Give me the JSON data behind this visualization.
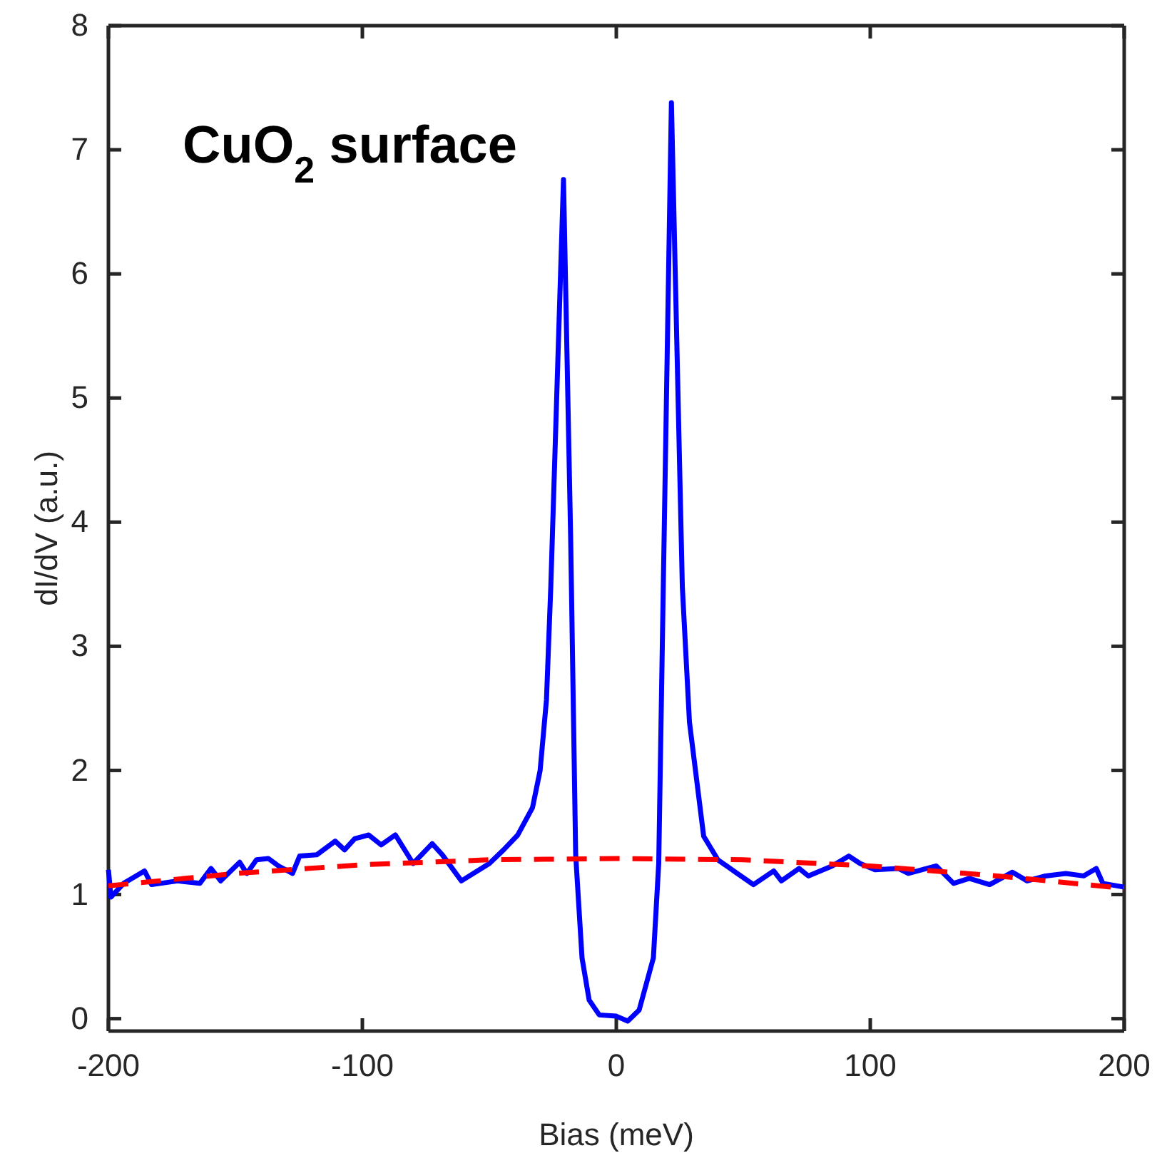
{
  "chart_data": {
    "type": "line",
    "xlabel": "Bias (meV)",
    "ylabel": "dI/dV (a.u.)",
    "annotations": [
      "CuO$_{2}$ surface"
    ],
    "xlim": [
      -200,
      200
    ],
    "xticks": [
      -200,
      -100,
      0,
      100,
      200
    ],
    "ylim": [
      -0.1,
      8
    ],
    "yticks": [
      0,
      1,
      2,
      3,
      4,
      5,
      6,
      7,
      8
    ],
    "marker": "none",
    "series": [
      {
        "color": "#0000ff",
        "line_style": "solid",
        "x": [
          -200,
          -199,
          -194,
          -185.8,
          -183,
          -172.7,
          -164,
          -159.6,
          -155.8,
          -148.3,
          -145.5,
          -141.7,
          -137,
          -133,
          -127.5,
          -124.7,
          -118,
          -110.7,
          -107,
          -103,
          -97.5,
          -92.6,
          -87,
          -80,
          -72.5,
          -68.5,
          -61,
          -50,
          -44.4,
          -38.8,
          -33,
          -30,
          -27.5,
          -25.8,
          -20.8,
          -18,
          -16,
          -13.5,
          -10.7,
          -6.7,
          0,
          4.5,
          9,
          14.6,
          16.7,
          18.5,
          21.7,
          26,
          28.8,
          34.4,
          40,
          47.6,
          54,
          62,
          65,
          72,
          75.6,
          85,
          91.6,
          96,
          101.9,
          111,
          115,
          126,
          132.8,
          139,
          147,
          156,
          161.8,
          169,
          177,
          184,
          189,
          191.6,
          200
        ],
        "values": [
          1.2,
          0.98,
          1.09,
          1.19,
          1.08,
          1.11,
          1.09,
          1.21,
          1.11,
          1.26,
          1.17,
          1.28,
          1.29,
          1.23,
          1.17,
          1.31,
          1.32,
          1.43,
          1.36,
          1.45,
          1.48,
          1.4,
          1.48,
          1.25,
          1.41,
          1.32,
          1.11,
          1.25,
          1.36,
          1.48,
          1.7,
          2.0,
          2.57,
          3.48,
          6.76,
          3.9,
          1.32,
          0.49,
          0.15,
          0.03,
          0.02,
          -0.02,
          0.07,
          0.49,
          1.25,
          3.48,
          7.38,
          3.48,
          2.39,
          1.47,
          1.28,
          1.17,
          1.08,
          1.19,
          1.11,
          1.21,
          1.15,
          1.23,
          1.31,
          1.25,
          1.2,
          1.21,
          1.17,
          1.23,
          1.09,
          1.13,
          1.08,
          1.18,
          1.11,
          1.15,
          1.17,
          1.15,
          1.21,
          1.09,
          1.06
        ]
      },
      {
        "color": "#ff0000",
        "line_style": "dashed",
        "x": [
          -200,
          -150,
          -100,
          -50,
          0,
          50,
          100,
          150,
          200
        ],
        "values": [
          1.07,
          1.17,
          1.24,
          1.28,
          1.29,
          1.28,
          1.23,
          1.15,
          1.05
        ]
      }
    ]
  }
}
